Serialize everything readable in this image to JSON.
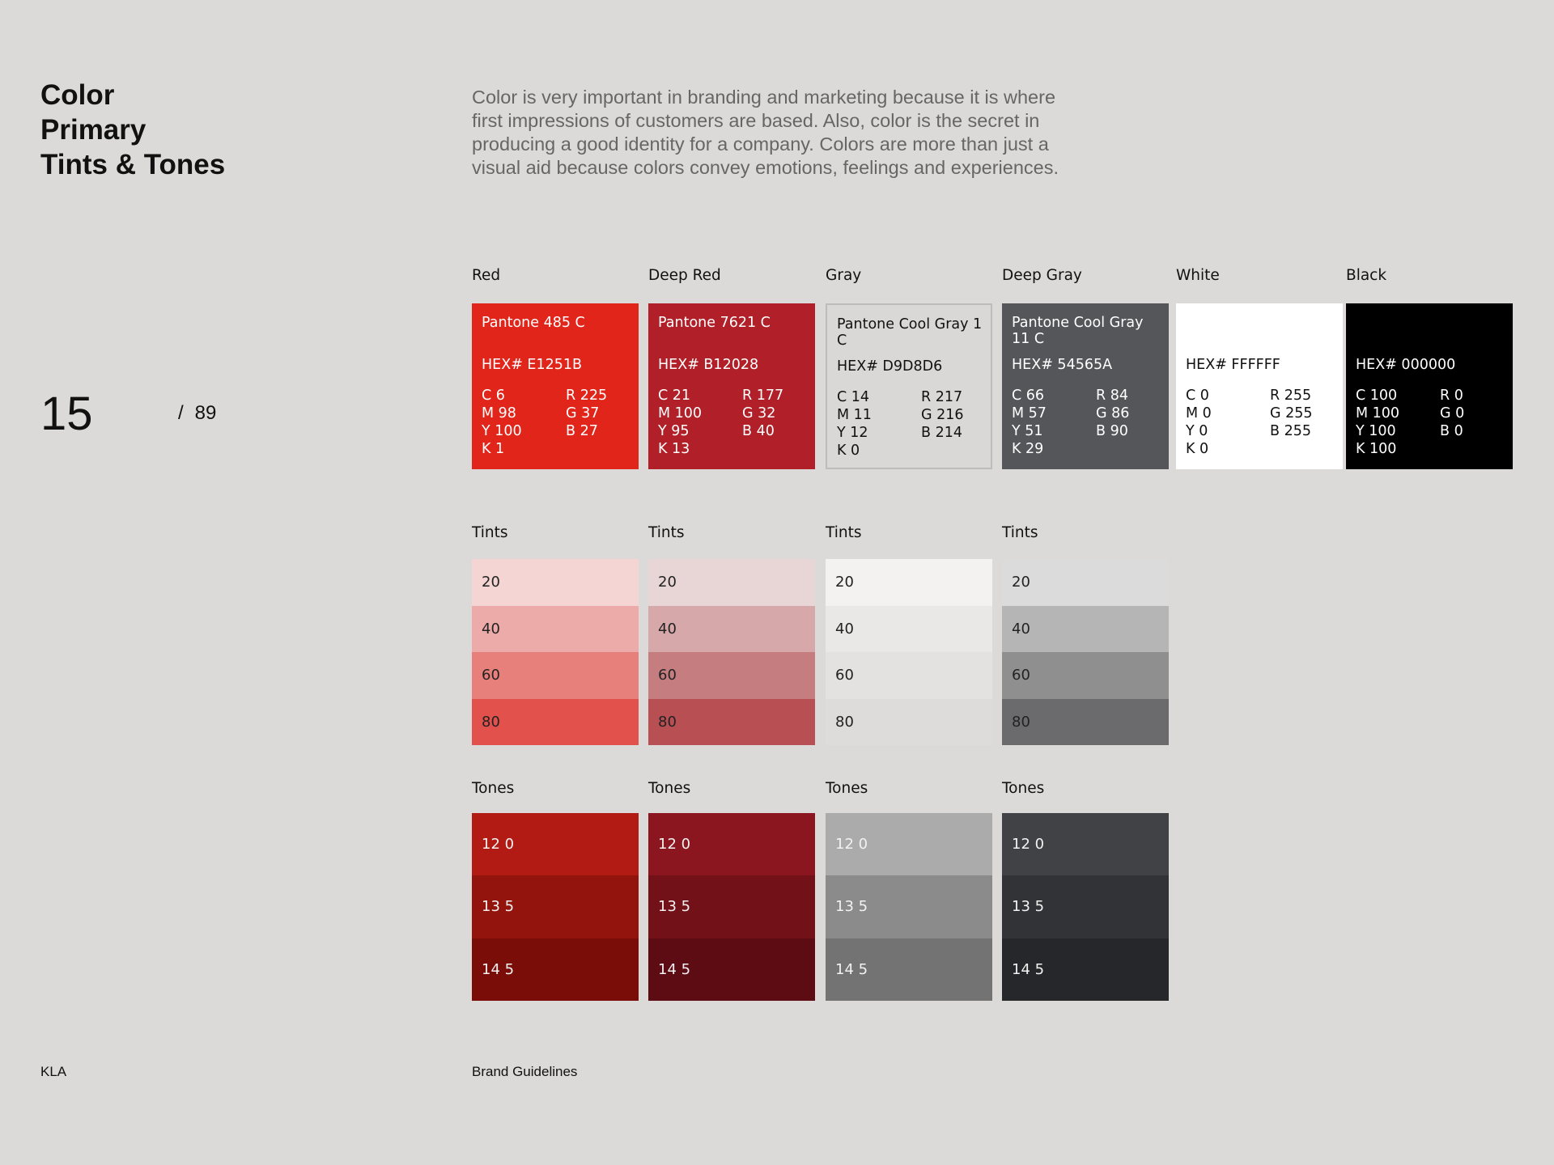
{
  "header": {
    "title_lines": [
      "Color",
      "Primary",
      "Tints & Tones"
    ],
    "intro": "Color is very important in branding and marketing because it is where first impressions of customers are based. Also, color is the secret in producing a good identity for a company. Colors are more than just a visual aid because colors convey emotions, feelings and experiences."
  },
  "page": {
    "current": "15",
    "separator": "/",
    "total": "89"
  },
  "colors": [
    {
      "name": "Red",
      "pantone": "Pantone 485 C",
      "hex": "HEX# E1251B",
      "swatch": "#E1251B",
      "text": "#ffffff",
      "border": "none",
      "cmyk": [
        "C 6",
        "M 98",
        "Y 100",
        "K 1"
      ],
      "rgb": [
        "R 225",
        "G 37",
        "B 27"
      ]
    },
    {
      "name": "Deep Red",
      "pantone": "Pantone 7621 C",
      "hex": "HEX# B12028",
      "swatch": "#B12028",
      "text": "#ffffff",
      "border": "none",
      "cmyk": [
        "C 21",
        "M 100",
        "Y 95",
        "K 13"
      ],
      "rgb": [
        "R 177",
        "G 32",
        "B 40"
      ]
    },
    {
      "name": "Gray",
      "pantone": "Pantone Cool Gray 1 C",
      "hex": "HEX# D9D8D6",
      "swatch": "#D9D8D6",
      "text": "#111111",
      "border": "2px solid #bdbcba",
      "cmyk": [
        "C 14",
        "M 11",
        "Y 12",
        "K 0"
      ],
      "rgb": [
        "R 217",
        "G 216",
        "B 214"
      ]
    },
    {
      "name": "Deep Gray",
      "pantone": "Pantone Cool Gray 11 C",
      "hex": "HEX# 54565A",
      "swatch": "#54565A",
      "text": "#ffffff",
      "border": "none",
      "cmyk": [
        "C 66",
        "M 57",
        "Y 51",
        "K 29"
      ],
      "rgb": [
        "R 84",
        "G 86",
        "B 90"
      ]
    },
    {
      "name": "White",
      "pantone": "",
      "hex": "HEX# FFFFFF",
      "swatch": "#FFFFFF",
      "text": "#111111",
      "border": "none",
      "cmyk": [
        "C 0",
        "M 0",
        "Y 0",
        "K 0"
      ],
      "rgb": [
        "R 255",
        "G 255",
        "B 255"
      ]
    },
    {
      "name": "Black",
      "pantone": "",
      "hex": "HEX# 000000",
      "swatch": "#000000",
      "text": "#ffffff",
      "border": "none",
      "cmyk": [
        "C 100",
        "M 100",
        "Y 100",
        "K 100"
      ],
      "rgb": [
        "R 0",
        "G 0",
        "B 0"
      ]
    }
  ],
  "tints_label": "Tints",
  "tones_label": "Tones",
  "tints": [
    [
      {
        "label": "20",
        "color": "#F4D5D3"
      },
      {
        "label": "40",
        "color": "#ECAAA8"
      },
      {
        "label": "60",
        "color": "#E77F7B"
      },
      {
        "label": "80",
        "color": "#E3514D"
      }
    ],
    [
      {
        "label": "20",
        "color": "#E8D6D6"
      },
      {
        "label": "40",
        "color": "#D6A8A9"
      },
      {
        "label": "60",
        "color": "#C67D80"
      },
      {
        "label": "80",
        "color": "#B84F53"
      }
    ],
    [
      {
        "label": "20",
        "color": "#F3F2F1"
      },
      {
        "label": "40",
        "color": "#E9E8E7"
      },
      {
        "label": "60",
        "color": "#E3E2E0"
      },
      {
        "label": "80",
        "color": "#DDDCDA"
      }
    ],
    [
      {
        "label": "20",
        "color": "#DBDBDC"
      },
      {
        "label": "40",
        "color": "#B5B5B6"
      },
      {
        "label": "60",
        "color": "#8F8F90"
      },
      {
        "label": "80",
        "color": "#6B6B6E"
      }
    ]
  ],
  "tones": [
    [
      {
        "label": "12 0",
        "color": "#B21B14"
      },
      {
        "label": "13 5",
        "color": "#92140C"
      },
      {
        "label": "14 5",
        "color": "#7A0D07"
      }
    ],
    [
      {
        "label": "12 0",
        "color": "#8C1620"
      },
      {
        "label": "13 5",
        "color": "#731119"
      },
      {
        "label": "14 5",
        "color": "#5E0C13"
      }
    ],
    [
      {
        "label": "12 0",
        "color": "#ACABAB"
      },
      {
        "label": "13 5",
        "color": "#8B8B8B"
      },
      {
        "label": "14 5",
        "color": "#737373"
      }
    ],
    [
      {
        "label": "12 0",
        "color": "#414245"
      },
      {
        "label": "13 5",
        "color": "#313336"
      },
      {
        "label": "14 5",
        "color": "#26272A"
      }
    ]
  ],
  "footer": {
    "left": "KLA",
    "center": "Brand Guidelines"
  }
}
